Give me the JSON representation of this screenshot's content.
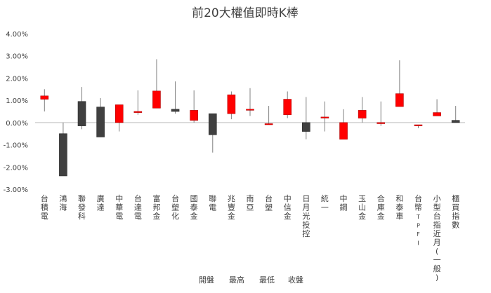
{
  "chart_data": {
    "type": "candlestick",
    "title": "前20大權值即時K棒",
    "ylim": [
      -3.0,
      4.0
    ],
    "yticks": [
      "4.00%",
      "3.00%",
      "2.00%",
      "1.00%",
      "0.00%",
      "-1.00%",
      "-2.00%",
      "-3.00%"
    ],
    "ytick_values": [
      4,
      3,
      2,
      1,
      0,
      -1,
      -2,
      -3
    ],
    "grid": false,
    "legend": [
      "開盤",
      "最高",
      "最低",
      "收盤"
    ],
    "colors": {
      "up": "#ff0000",
      "down": "#404040",
      "wick": "#808080",
      "axis": "#bfbfbf"
    },
    "categories": [
      "台積電",
      "鴻海",
      "聯發科",
      "廣達",
      "中華電",
      "台達電",
      "富邦金",
      "台塑化",
      "國泰金",
      "聯電",
      "兆豐金",
      "南亞",
      "台塑",
      "中信金",
      "日月光投控",
      "統一",
      "中鋼",
      "玉山金",
      "合庫金",
      "和泰車",
      "台幣TPFI",
      "小型台指近月(一般)",
      "櫃買指數"
    ],
    "series": [
      {
        "name": "開盤",
        "values": [
          1.05,
          -0.5,
          0.95,
          0.7,
          0.0,
          0.45,
          0.65,
          0.6,
          0.1,
          0.4,
          0.4,
          0.6,
          -0.05,
          0.35,
          0.0,
          0.25,
          -0.75,
          0.2,
          -0.05,
          0.72,
          -0.1,
          0.3,
          0.1
        ]
      },
      {
        "name": "最高",
        "values": [
          1.5,
          0.0,
          1.6,
          1.1,
          0.8,
          1.45,
          2.85,
          1.85,
          1.45,
          0.35,
          1.4,
          1.55,
          0.75,
          1.4,
          1.15,
          0.95,
          0.6,
          1.15,
          0.95,
          2.8,
          -0.1,
          1.05,
          0.75
        ]
      },
      {
        "name": "最低",
        "values": [
          0.5,
          -2.4,
          -0.3,
          -0.65,
          -0.4,
          0.35,
          0.65,
          0.4,
          0.0,
          -1.35,
          0.15,
          0.3,
          -0.05,
          0.2,
          -0.75,
          -0.4,
          -0.75,
          0.0,
          -0.15,
          0.72,
          -0.25,
          0.3,
          0.0
        ]
      },
      {
        "name": "收盤",
        "values": [
          1.2,
          -2.4,
          -0.15,
          -0.65,
          0.8,
          0.5,
          1.42,
          0.5,
          0.55,
          -0.55,
          1.25,
          0.6,
          -0.05,
          1.05,
          -0.4,
          0.25,
          0.0,
          0.55,
          0.0,
          1.3,
          -0.1,
          0.45,
          0.0
        ]
      }
    ]
  }
}
